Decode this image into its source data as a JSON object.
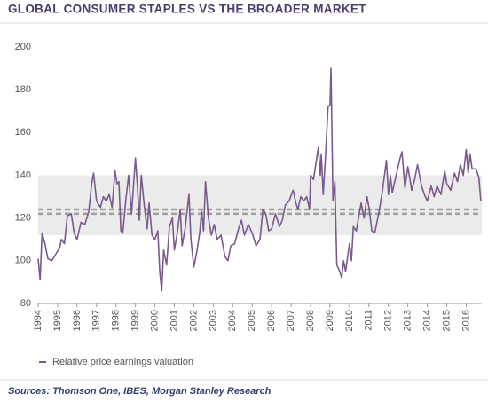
{
  "chart_data": {
    "type": "line",
    "title": "GLOBAL CONSUMER STAPLES VS THE BROADER MARKET",
    "source": "Sources: Thomson One, IBES, Morgan Stanley Research",
    "xlim": [
      1994,
      2016.8
    ],
    "ylim": [
      80,
      200
    ],
    "xticks": [
      1994,
      1995,
      1996,
      1997,
      1998,
      1999,
      2000,
      2001,
      2002,
      2003,
      2004,
      2005,
      2006,
      2007,
      2008,
      2009,
      2010,
      2011,
      2012,
      2013,
      2014,
      2015,
      2016
    ],
    "yticks": [
      80,
      100,
      120,
      140,
      160,
      180,
      200
    ],
    "band": {
      "from": 112,
      "to": 140,
      "color": "#ebebeb"
    },
    "hlines": [
      {
        "value": 122,
        "color": "#a0a0a0"
      },
      {
        "value": 124,
        "color": "#a0a0a0"
      }
    ],
    "series": [
      {
        "name": "Relative price earnings valuation",
        "color": "#7a5a8c",
        "x": [
          1994.0,
          1994.1,
          1994.2,
          1994.35,
          1994.5,
          1994.7,
          1994.9,
          1995.1,
          1995.2,
          1995.35,
          1995.5,
          1995.7,
          1995.85,
          1996.0,
          1996.2,
          1996.4,
          1996.5,
          1996.6,
          1996.75,
          1996.85,
          1997.0,
          1997.2,
          1997.35,
          1997.5,
          1997.65,
          1997.8,
          1997.95,
          1998.05,
          1998.15,
          1998.25,
          1998.35,
          1998.5,
          1998.65,
          1998.8,
          1999.0,
          1999.1,
          1999.2,
          1999.3,
          1999.45,
          1999.6,
          1999.7,
          1999.85,
          2000.0,
          2000.15,
          2000.25,
          2000.35,
          2000.45,
          2000.6,
          2000.75,
          2000.9,
          2001.0,
          2001.15,
          2001.3,
          2001.4,
          2001.55,
          2001.75,
          2001.85,
          2002.0,
          2002.15,
          2002.3,
          2002.4,
          2002.5,
          2002.6,
          2002.75,
          2002.9,
          2003.05,
          2003.2,
          2003.4,
          2003.6,
          2003.75,
          2003.9,
          2004.1,
          2004.3,
          2004.45,
          2004.6,
          2004.8,
          2005.0,
          2005.2,
          2005.4,
          2005.55,
          2005.7,
          2005.85,
          2006.0,
          2006.2,
          2006.4,
          2006.55,
          2006.7,
          2006.9,
          2007.1,
          2007.25,
          2007.35,
          2007.5,
          2007.65,
          2007.8,
          2007.95,
          2008.0,
          2008.15,
          2008.3,
          2008.4,
          2008.5,
          2008.55,
          2008.65,
          2008.75,
          2008.9,
          2009.0,
          2009.05,
          2009.15,
          2009.25,
          2009.35,
          2009.5,
          2009.6,
          2009.7,
          2009.8,
          2010.0,
          2010.1,
          2010.2,
          2010.35,
          2010.5,
          2010.6,
          2010.75,
          2010.9,
          2011.0,
          2011.15,
          2011.3,
          2011.5,
          2011.7,
          2011.9,
          2012.0,
          2012.1,
          2012.2,
          2012.4,
          2012.6,
          2012.7,
          2012.85,
          2013.0,
          2013.2,
          2013.35,
          2013.5,
          2013.7,
          2013.85,
          2014.0,
          2014.2,
          2014.35,
          2014.5,
          2014.7,
          2014.9,
          2015.0,
          2015.2,
          2015.4,
          2015.55,
          2015.7,
          2015.85,
          2016.0,
          2016.1,
          2016.2,
          2016.3,
          2016.5,
          2016.65,
          2016.75
        ],
        "values": [
          101,
          91,
          113,
          108,
          101,
          100,
          103,
          106,
          110,
          108,
          121,
          122,
          113,
          110,
          118,
          117,
          120,
          123,
          136,
          141,
          128,
          125,
          130,
          128,
          131,
          125,
          142,
          136,
          137,
          114,
          113,
          128,
          140,
          122,
          148,
          135,
          119,
          140,
          126,
          115,
          127,
          112,
          110,
          114,
          95,
          86,
          105,
          98,
          116,
          120,
          105,
          113,
          124,
          107,
          115,
          131,
          110,
          97,
          104,
          113,
          123,
          114,
          137,
          120,
          112,
          117,
          110,
          112,
          102,
          100,
          107,
          108,
          115,
          119,
          112,
          117,
          113,
          107,
          110,
          124,
          122,
          114,
          115,
          122,
          116,
          119,
          126,
          128,
          133,
          127,
          124,
          130,
          128,
          130,
          124,
          140,
          138,
          147,
          153,
          140,
          150,
          131,
          146,
          172,
          173,
          190,
          128,
          137,
          98,
          95,
          92,
          100,
          95,
          108,
          100,
          116,
          114,
          122,
          127,
          120,
          130,
          125,
          114,
          113,
          122,
          133,
          147,
          131,
          140,
          132,
          140,
          148,
          151,
          134,
          144,
          133,
          138,
          145,
          135,
          131,
          128,
          135,
          130,
          135,
          131,
          142,
          136,
          133,
          141,
          137,
          145,
          140,
          152,
          141,
          150,
          143,
          143,
          139,
          128
        ]
      }
    ]
  }
}
